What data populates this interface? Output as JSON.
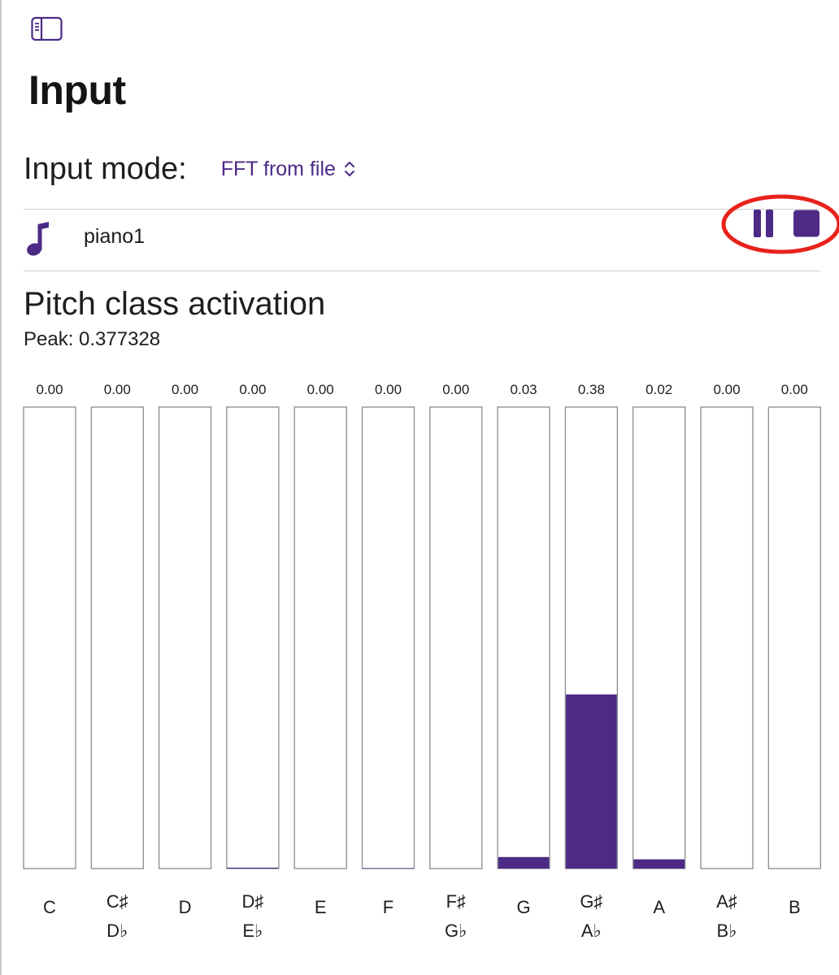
{
  "header": {
    "sidebar_toggle_icon": "sidebar-icon",
    "title": "Input"
  },
  "input_mode": {
    "label": "Input mode:",
    "selected": "FFT from file",
    "chevron_icon": "chevron-up-down-icon"
  },
  "file": {
    "icon": "music-note-icon",
    "name": "piano1",
    "pause_icon": "pause-icon",
    "stop_icon": "stop-icon",
    "annotation_color": "#e8221b"
  },
  "pitch_class": {
    "title": "Pitch class activation",
    "peak_text": "Peak: 0.377328"
  },
  "colors": {
    "accent": "#4c2a86",
    "bar_border": "#8a8a8a"
  },
  "chart_data": {
    "type": "bar",
    "categories": [
      [
        "C"
      ],
      [
        "C♯",
        "D♭"
      ],
      [
        "D"
      ],
      [
        "D♯",
        "E♭"
      ],
      [
        "E"
      ],
      [
        "F"
      ],
      [
        "F♯",
        "G♭"
      ],
      [
        "G"
      ],
      [
        "G♯",
        "A♭"
      ],
      [
        "A"
      ],
      [
        "A♯",
        "B♭"
      ],
      [
        "B"
      ]
    ],
    "values": [
      0.0,
      0.0,
      0.0,
      0.002,
      0.0,
      0.001,
      0.0,
      0.025,
      0.377328,
      0.02,
      0.0,
      0.0
    ],
    "value_labels": [
      "0.00",
      "0.00",
      "0.00",
      "0.00",
      "0.00",
      "0.00",
      "0.00",
      "0.03",
      "0.38",
      "0.02",
      "0.00",
      "0.00"
    ],
    "ylim": [
      0,
      1
    ],
    "title": "",
    "xlabel": "",
    "ylabel": "",
    "grid": false,
    "legend": "none"
  }
}
